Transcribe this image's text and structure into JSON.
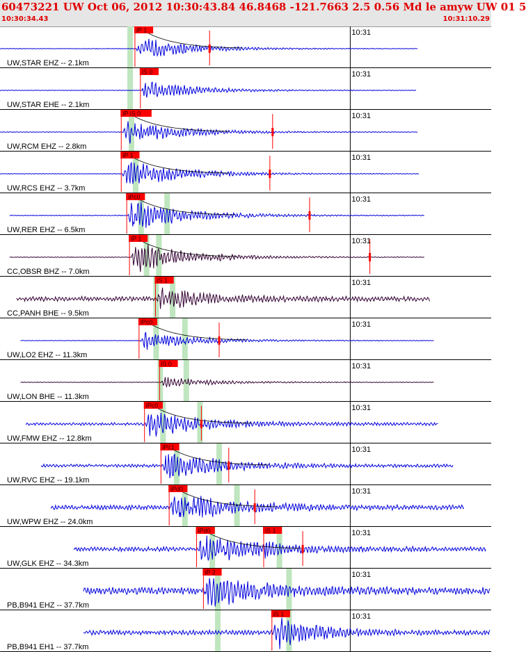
{
  "header": {
    "title": "60473221 UW Oct 06, 2012 10:30:43.84   46.8468 -121.7663  2.5 0.56 Md le amyw UW 01   5",
    "start_time": "10:30:34.43",
    "end_time": "10:31:10.29"
  },
  "colors": {
    "background": "#ffffff",
    "header_bg": "#e6e6e6",
    "title": "#e00000",
    "trace_blue": "#0000dd",
    "trace_dark": "#330033",
    "pick": "#ff0000",
    "window": "#bfe6bf",
    "decay": "#000000"
  },
  "chart_data": {
    "type": "line",
    "x_unit": "seconds after 10:30:34.43",
    "xlim": [
      0,
      35.86
    ],
    "minute_tick": {
      "label": "10:31",
      "x": 25.57
    },
    "traces": [
      {
        "label": "UW,STAR EHZ -- 2.1km",
        "color": "#0000dd",
        "start": 0.0,
        "end": 30.5,
        "amp": 0.62,
        "noise": 0.015,
        "picks": [
          {
            "label": "iP 1",
            "x": 9.8
          }
        ],
        "green": [
          9.5
        ],
        "decay": true,
        "spike": 15.3
      },
      {
        "label": "UW,STAR EHE -- 2.1km",
        "color": "#0000dd",
        "start": 0.0,
        "end": 30.4,
        "amp": 0.55,
        "noise": 0.015,
        "picks": [
          {
            "label": "iS 0",
            "x": 10.2
          }
        ],
        "green": [
          9.5
        ],
        "decay": false,
        "spike": null
      },
      {
        "label": "UW,RCM EHZ -- 2.8km",
        "color": "#0000dd",
        "start": 0.0,
        "end": 30.5,
        "amp": 0.72,
        "noise": 0.015,
        "picks": [
          {
            "label": "iP iS 0",
            "x": 8.8
          }
        ],
        "green": [
          9.6
        ],
        "decay": true,
        "spike": 19.9
      },
      {
        "label": "UW,RCS EHZ -- 3.7km",
        "color": "#0000dd",
        "start": 0.0,
        "end": 30.6,
        "amp": 0.82,
        "noise": 0.015,
        "picks": [
          {
            "label": "iP 1",
            "x": 8.8
          }
        ],
        "green": [
          9.9
        ],
        "decay": true,
        "spike": 19.7
      },
      {
        "label": "UW,RER EHZ -- 6.5km",
        "color": "#0000dd",
        "start": 0.7,
        "end": 31.0,
        "amp": 0.92,
        "noise": 0.02,
        "picks": [
          {
            "label": "iPc0",
            "x": 9.2
          }
        ],
        "green": [
          10.3,
          12.2
        ],
        "decay": true,
        "spike": 22.6
      },
      {
        "label": "CC,OBSR BHZ -- 7.0km",
        "color": "#330033",
        "start": 0.7,
        "end": 31.0,
        "amp": 0.88,
        "noise": 0.015,
        "picks": [
          {
            "label": "iP 1",
            "x": 9.4
          }
        ],
        "green": [
          10.7,
          11.6
        ],
        "decay": true,
        "spike": 27.0
      },
      {
        "label": "CC,PANH BHE -- 9.5km",
        "color": "#330033",
        "start": 1.2,
        "end": 31.4,
        "amp": 0.5,
        "noise": 0.12,
        "picks": [
          {
            "label": "iS 1",
            "x": 11.3
          }
        ],
        "green": [
          11.4,
          12.6
        ],
        "decay": false,
        "spike": null
      },
      {
        "label": "UW,LO2 EHZ -- 11.3km",
        "color": "#0000dd",
        "start": 1.5,
        "end": 31.7,
        "amp": 0.5,
        "noise": 0.015,
        "picks": [
          {
            "label": "iPc0",
            "x": 10.1
          }
        ],
        "green": [
          11.4,
          13.5
        ],
        "decay": true,
        "spike": 16.0
      },
      {
        "label": "UW,LON BHE -- 11.3km",
        "color": "#330033",
        "start": 1.5,
        "end": 31.7,
        "amp": 0.3,
        "noise": 0.015,
        "picks": [
          {
            "label": "iS 0",
            "x": 11.6
          }
        ],
        "green": [
          11.7,
          13.6
        ],
        "decay": false,
        "spike": null
      },
      {
        "label": "UW,FMW EHZ -- 12.8km",
        "color": "#0000dd",
        "start": 1.9,
        "end": 32.0,
        "amp": 0.7,
        "noise": 0.07,
        "picks": [
          {
            "label": "iPc0",
            "x": 10.5
          }
        ],
        "green": [
          11.9,
          14.6
        ],
        "decay": true,
        "spike": 14.7
      },
      {
        "label": "UW,RVC EHZ -- 19.1km",
        "color": "#0000dd",
        "start": 3.0,
        "end": 33.1,
        "amp": 0.75,
        "noise": 0.08,
        "picks": [
          {
            "label": "iPc1",
            "x": 11.7
          }
        ],
        "green": [
          12.9,
          16.0
        ],
        "decay": true,
        "spike": 16.7
      },
      {
        "label": "UW,WPW EHZ -- 24.0km",
        "color": "#0000dd",
        "start": 3.7,
        "end": 33.9,
        "amp": 0.8,
        "noise": 0.12,
        "picks": [
          {
            "label": "iPd0",
            "x": 12.3
          }
        ],
        "green": [
          13.5,
          17.3
        ],
        "decay": true,
        "spike": 18.6
      },
      {
        "label": "UW,GLK EHZ -- 34.3km",
        "color": "#0000dd",
        "start": 5.4,
        "end": 35.5,
        "amp": 0.75,
        "noise": 0.12,
        "picks": [
          {
            "label": "iPd0",
            "x": 14.3
          },
          {
            "label": "iS 1",
            "x": 19.2
          }
        ],
        "green": [
          15.5,
          20.4
        ],
        "decay": true,
        "spike": 22.1
      },
      {
        "label": "PB,B941 EHZ -- 37.7km",
        "color": "#0000dd",
        "start": 6.1,
        "end": 35.8,
        "amp": 0.8,
        "noise": 0.18,
        "picks": [
          {
            "label": "iP 2",
            "x": 14.8
          }
        ],
        "green": [
          15.9,
          21.1
        ],
        "decay": false,
        "spike": null
      },
      {
        "label": "PB,B941 EH1 -- 37.7km",
        "color": "#0000dd",
        "start": 6.1,
        "end": 35.8,
        "amp": 0.85,
        "noise": 0.12,
        "picks": [
          {
            "label": "iS 1",
            "x": 19.8
          }
        ],
        "green": [
          15.9,
          21.1
        ],
        "decay": false,
        "spike": null
      }
    ]
  }
}
